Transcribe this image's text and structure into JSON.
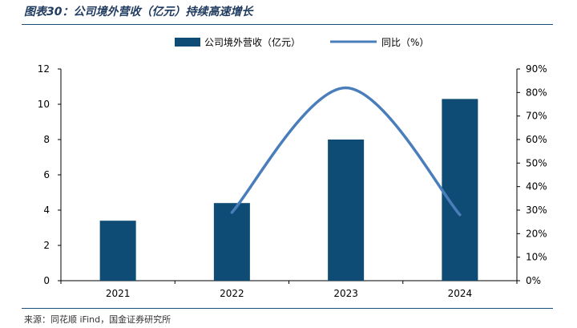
{
  "header": {
    "figure_title": "图表30：公司境外营收（亿元）持续高速增长"
  },
  "footer": {
    "source": "来源：同花顺 iFind，国金证券研究所"
  },
  "chart_data": {
    "type": "bar",
    "title": "",
    "categories": [
      "2021",
      "2022",
      "2023",
      "2024"
    ],
    "series": [
      {
        "name": "公司境外营收（亿元）",
        "kind": "bar",
        "axis": "left",
        "values": [
          3.4,
          4.4,
          8.0,
          10.3
        ],
        "color": "#0e4c75"
      },
      {
        "name": "同比（%）",
        "kind": "line",
        "axis": "right",
        "values": [
          null,
          29,
          82,
          28
        ],
        "color": "#4a7ebb"
      }
    ],
    "left_axis": {
      "min": 0,
      "max": 12,
      "ticks": [
        "0",
        "2",
        "4",
        "6",
        "8",
        "10",
        "12"
      ]
    },
    "right_axis": {
      "min": 0,
      "max": 90,
      "ticks": [
        "0%",
        "10%",
        "20%",
        "30%",
        "40%",
        "50%",
        "60%",
        "70%",
        "80%",
        "90%"
      ]
    },
    "legend_position": "top-center",
    "grid": false
  }
}
